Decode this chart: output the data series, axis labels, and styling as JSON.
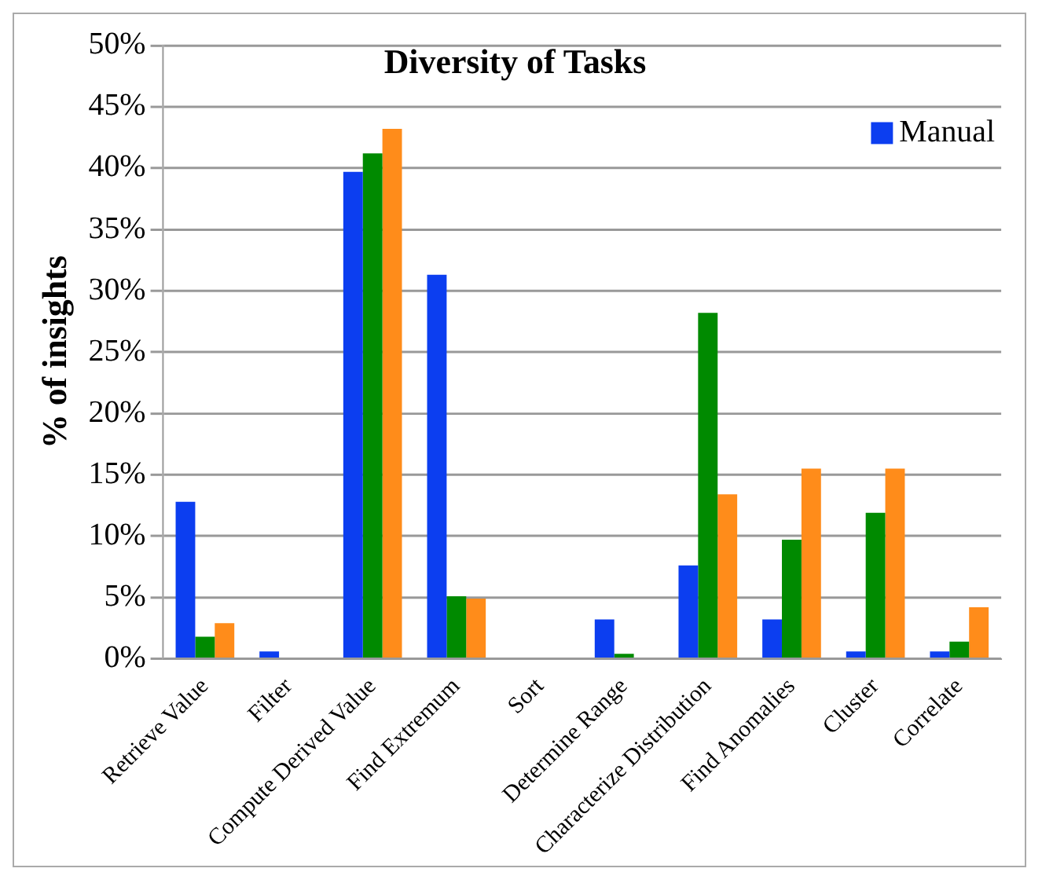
{
  "chart_data": {
    "type": "bar",
    "title": "Diversity of Tasks",
    "ylabel": "% of insights",
    "categories": [
      "Retrieve Value",
      "Filter",
      "Compute Derived Value",
      "Find Extremum",
      "Sort",
      "Determine Range",
      "Characterize Distribution",
      "Find Anomalies",
      "Cluster",
      "Correlate"
    ],
    "series": [
      {
        "name": "Manual",
        "color": "#0c3ef0",
        "values": [
          12.8,
          0.6,
          39.7,
          31.3,
          0,
          3.2,
          7.6,
          3.2,
          0.6,
          0.6
        ]
      },
      {
        "color": "#008a00",
        "values": [
          1.8,
          0,
          41.2,
          5.1,
          0,
          0.4,
          28.2,
          9.7,
          11.9,
          1.4
        ]
      },
      {
        "color": "#ff8c1a",
        "values": [
          2.9,
          0,
          43.2,
          4.9,
          0,
          0,
          13.4,
          15.5,
          15.5,
          4.2
        ]
      }
    ],
    "ylim": [
      0,
      50
    ],
    "yticks": [
      {
        "value": 0,
        "label": "0%"
      },
      {
        "value": 5,
        "label": "5%"
      },
      {
        "value": 10,
        "label": "10%"
      },
      {
        "value": 15,
        "label": "15%"
      },
      {
        "value": 20,
        "label": "20%"
      },
      {
        "value": 25,
        "label": "25%"
      },
      {
        "value": 30,
        "label": "30%"
      },
      {
        "value": 35,
        "label": "35%"
      },
      {
        "value": 40,
        "label": "40%"
      },
      {
        "value": 45,
        "label": "45%"
      },
      {
        "value": 50,
        "label": "50%"
      }
    ],
    "grid": "y",
    "legend": "top right"
  }
}
